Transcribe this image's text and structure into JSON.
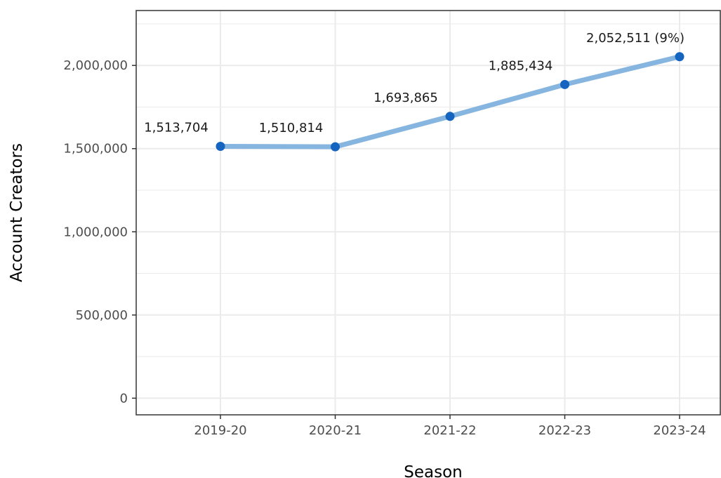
{
  "chart_data": {
    "type": "line",
    "title": "",
    "xlabel": "Season",
    "ylabel": "Account Creators",
    "categories": [
      "2019-20",
      "2020-21",
      "2021-22",
      "2022-23",
      "2023-24"
    ],
    "values": [
      1513704,
      1510814,
      1693865,
      1885434,
      2052511
    ],
    "point_labels": [
      "1,513,704",
      "1,510,814",
      "1,693,865",
      "1,885,434",
      "2,052,511 (9%)"
    ],
    "ylim": [
      -100000,
      2330000
    ],
    "y_ticks": [
      0,
      500000,
      1000000,
      1500000,
      2000000
    ],
    "y_tick_labels": [
      "0",
      "500,000",
      "1,000,000",
      "1,500,000",
      "2,000,000"
    ],
    "grid": true,
    "legend": "none",
    "colors": {
      "line": "#86b5e0",
      "point": "#1565c0",
      "grid": "#ebebeb",
      "panel_border": "#333333"
    }
  }
}
